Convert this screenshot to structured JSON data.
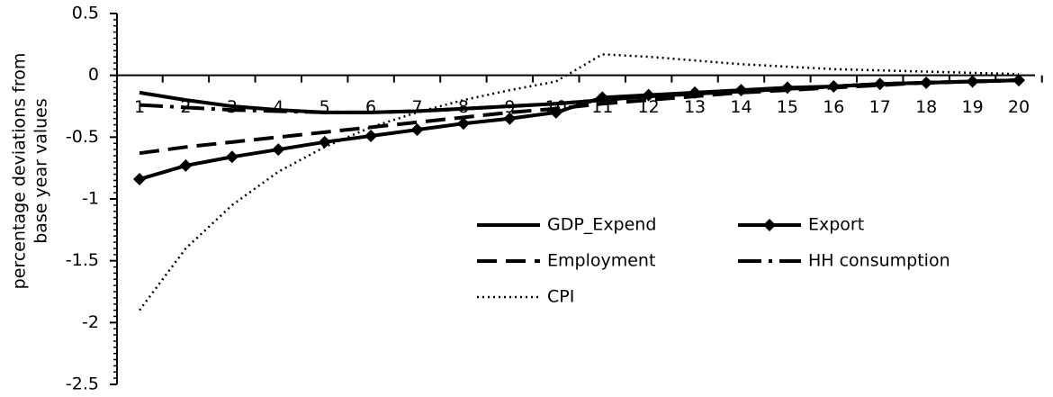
{
  "chart_data": {
    "type": "line",
    "y_label_lines": [
      "percentage deviations from",
      "base year values"
    ],
    "categories": [
      "1",
      "2",
      "3",
      "4",
      "5",
      "6",
      "7",
      "8",
      "9",
      "10",
      "11",
      "12",
      "13",
      "14",
      "15",
      "16",
      "17",
      "18",
      "19",
      "20"
    ],
    "series": [
      {
        "name": "GDP_Expend",
        "color": "#000000",
        "style": "solid",
        "marker": "none",
        "values": [
          -0.14,
          -0.2,
          -0.25,
          -0.28,
          -0.3,
          -0.3,
          -0.29,
          -0.27,
          -0.25,
          -0.23,
          -0.2,
          -0.17,
          -0.15,
          -0.13,
          -0.11,
          -0.09,
          -0.07,
          -0.06,
          -0.05,
          -0.04
        ]
      },
      {
        "name": "Export",
        "color": "#000000",
        "style": "solid",
        "marker": "diamond",
        "values": [
          -0.84,
          -0.73,
          -0.66,
          -0.6,
          -0.54,
          -0.49,
          -0.44,
          -0.39,
          -0.35,
          -0.3,
          -0.18,
          -0.16,
          -0.14,
          -0.12,
          -0.1,
          -0.09,
          -0.07,
          -0.06,
          -0.05,
          -0.04
        ]
      },
      {
        "name": "Employment",
        "color": "#000000",
        "style": "dashed",
        "marker": "none",
        "values": [
          -0.63,
          -0.58,
          -0.54,
          -0.5,
          -0.46,
          -0.42,
          -0.38,
          -0.34,
          -0.3,
          -0.27,
          -0.23,
          -0.2,
          -0.17,
          -0.14,
          -0.12,
          -0.1,
          -0.08,
          -0.06,
          -0.05,
          -0.04
        ]
      },
      {
        "name": "HH consumption",
        "color": "#000000",
        "style": "dashdot",
        "marker": "none",
        "values": [
          -0.24,
          -0.26,
          -0.28,
          -0.29,
          -0.3,
          -0.3,
          -0.29,
          -0.27,
          -0.25,
          -0.23,
          -0.2,
          -0.17,
          -0.15,
          -0.13,
          -0.11,
          -0.09,
          -0.07,
          -0.06,
          -0.05,
          -0.04
        ]
      },
      {
        "name": "CPI",
        "color": "#000000",
        "style": "dotted",
        "marker": "none",
        "values": [
          -1.9,
          -1.4,
          -1.05,
          -0.78,
          -0.58,
          -0.42,
          -0.3,
          -0.2,
          -0.12,
          -0.05,
          0.17,
          0.15,
          0.12,
          0.09,
          0.07,
          0.05,
          0.04,
          0.03,
          0.02,
          0.01
        ]
      }
    ],
    "ylim": [
      -2.5,
      0.5
    ],
    "yticks": [
      0.5,
      0,
      -0.5,
      -1,
      -1.5,
      -2,
      -2.5
    ],
    "grid": false
  }
}
